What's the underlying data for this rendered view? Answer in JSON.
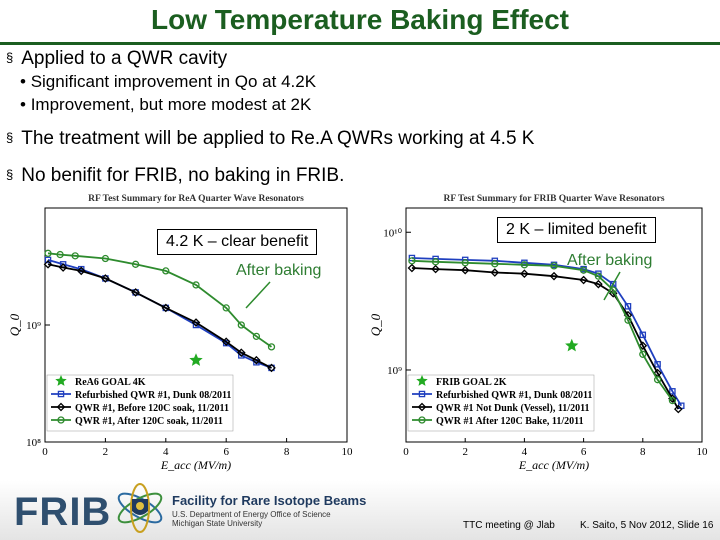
{
  "title": "Low Temperature Baking Effect",
  "bullets": {
    "b1": "Applied to a QWR cavity",
    "b1_sub1": "Significant improvement in Qo at 4.2K",
    "b1_sub2": "Improvement, but more modest at 2K",
    "b2": "The treatment will be applied to Re.A QWRs working at 4.5 K",
    "b3": "No benifit for FRIB, no baking in FRIB."
  },
  "bullet_glyph": "§",
  "sub_glyph": "•",
  "callouts": {
    "left_box": "4.2 K – clear benefit",
    "left_note": "After baking",
    "right_box": "2 K – limited benefit",
    "right_note": "After baking"
  },
  "footer": {
    "frib": "FRIB",
    "facility": "Facility for Rare Isotope Beams",
    "doe": "U.S. Department of Energy Office of Science",
    "msu": "Michigan State University",
    "meeting": "TTC meeting @ Jlab",
    "slide": "K. Saito, 5 Nov 2012,  Slide 16"
  },
  "colors": {
    "title": "#1b5e20",
    "blue": "#1f3fbf",
    "black": "#000000",
    "green": "#2e8b2e",
    "goal_star": "#22aa22"
  },
  "chart_data": [
    {
      "type": "line",
      "title": "RF Test Summary for ReA Quarter Wave Resonators",
      "xlabel": "E_acc (MV/m)",
      "ylabel": "Q_0",
      "xlim": [
        0,
        10
      ],
      "ylim": [
        100000000,
        10000000000
      ],
      "y_scale": "log",
      "x_ticks": [
        "0",
        "2",
        "4",
        "6",
        "8",
        "10"
      ],
      "y_ticks": [
        "10⁸",
        "10⁹"
      ],
      "legend": "bottom-left",
      "series": [
        {
          "name": "ReA6 GOAL 4K",
          "marker": "star",
          "color": "#22aa22",
          "x": [
            5.0
          ],
          "y": [
            500000000
          ]
        },
        {
          "name": "Refurbished QWR #1, Dunk 08/2011",
          "color": "#1f3fbf",
          "x": [
            0.1,
            0.6,
            1.2,
            2.0,
            3.0,
            4.0,
            5.0,
            6.0,
            6.5,
            7.0,
            7.5
          ],
          "y": [
            3600000000,
            3300000000,
            3000000000,
            2500000000,
            1900000000,
            1400000000,
            1000000000,
            700000000,
            550000000,
            480000000,
            430000000
          ]
        },
        {
          "name": "QWR #1, Before 120C soak, 11/2011",
          "color": "#000000",
          "x": [
            0.1,
            0.6,
            1.2,
            2.0,
            3.0,
            4.0,
            5.0,
            6.0,
            6.5,
            7.0,
            7.5
          ],
          "y": [
            3300000000,
            3100000000,
            2900000000,
            2500000000,
            1900000000,
            1400000000,
            1050000000,
            720000000,
            580000000,
            500000000,
            430000000
          ]
        },
        {
          "name": "QWR #1, After 120C soak, 11/2011",
          "color": "#2e8b2e",
          "x": [
            0.1,
            0.5,
            1.0,
            2.0,
            3.0,
            4.0,
            5.0,
            6.0,
            6.5,
            7.0,
            7.5
          ],
          "y": [
            4100000000,
            4000000000,
            3900000000,
            3700000000,
            3300000000,
            2900000000,
            2200000000,
            1400000000,
            1000000000,
            800000000,
            650000000
          ]
        }
      ]
    },
    {
      "type": "line",
      "title": "RF Test Summary for FRIB Quarter Wave Resonators",
      "xlabel": "E_acc (MV/m)",
      "ylabel": "Q_0",
      "xlim": [
        0,
        10
      ],
      "ylim": [
        300000000,
        15000000000
      ],
      "y_scale": "log",
      "x_ticks": [
        "0",
        "2",
        "4",
        "6",
        "8",
        "10"
      ],
      "y_ticks": [
        "10⁹",
        "10¹⁰"
      ],
      "legend": "bottom-left",
      "series": [
        {
          "name": "FRIB GOAL 2K",
          "marker": "star",
          "color": "#22aa22",
          "x": [
            5.6
          ],
          "y": [
            1500000000
          ]
        },
        {
          "name": "Refurbished QWR #1, Dunk 08/2011",
          "color": "#1f3fbf",
          "x": [
            0.2,
            1.0,
            2.0,
            3.0,
            4.0,
            5.0,
            6.0,
            6.5,
            7.0,
            7.5,
            8.0,
            8.5,
            9.0,
            9.3
          ],
          "y": [
            6500000000,
            6400000000,
            6300000000,
            6200000000,
            6000000000,
            5800000000,
            5400000000,
            5000000000,
            4200000000,
            2900000000,
            1800000000,
            1100000000,
            700000000,
            550000000
          ]
        },
        {
          "name": "QWR #1 Not Dunk (Vessel), 11/2011",
          "color": "#000000",
          "x": [
            0.2,
            1.0,
            2.0,
            3.0,
            4.0,
            5.0,
            6.0,
            6.5,
            7.0,
            7.5,
            8.0,
            8.5,
            9.0,
            9.2
          ],
          "y": [
            5500000000,
            5400000000,
            5300000000,
            5100000000,
            5000000000,
            4800000000,
            4500000000,
            4200000000,
            3600000000,
            2500000000,
            1500000000,
            950000000,
            620000000,
            520000000
          ]
        },
        {
          "name": "QWR #1 After 120C Bake, 11/2011",
          "color": "#2e8b2e",
          "x": [
            0.2,
            1.0,
            2.0,
            3.0,
            4.0,
            5.0,
            6.0,
            6.5,
            7.0,
            7.5,
            8.0,
            8.5,
            9.0
          ],
          "y": [
            6200000000,
            6100000000,
            6000000000,
            5900000000,
            5800000000,
            5700000000,
            5300000000,
            4800000000,
            3800000000,
            2300000000,
            1300000000,
            850000000,
            600000000
          ]
        }
      ]
    }
  ]
}
